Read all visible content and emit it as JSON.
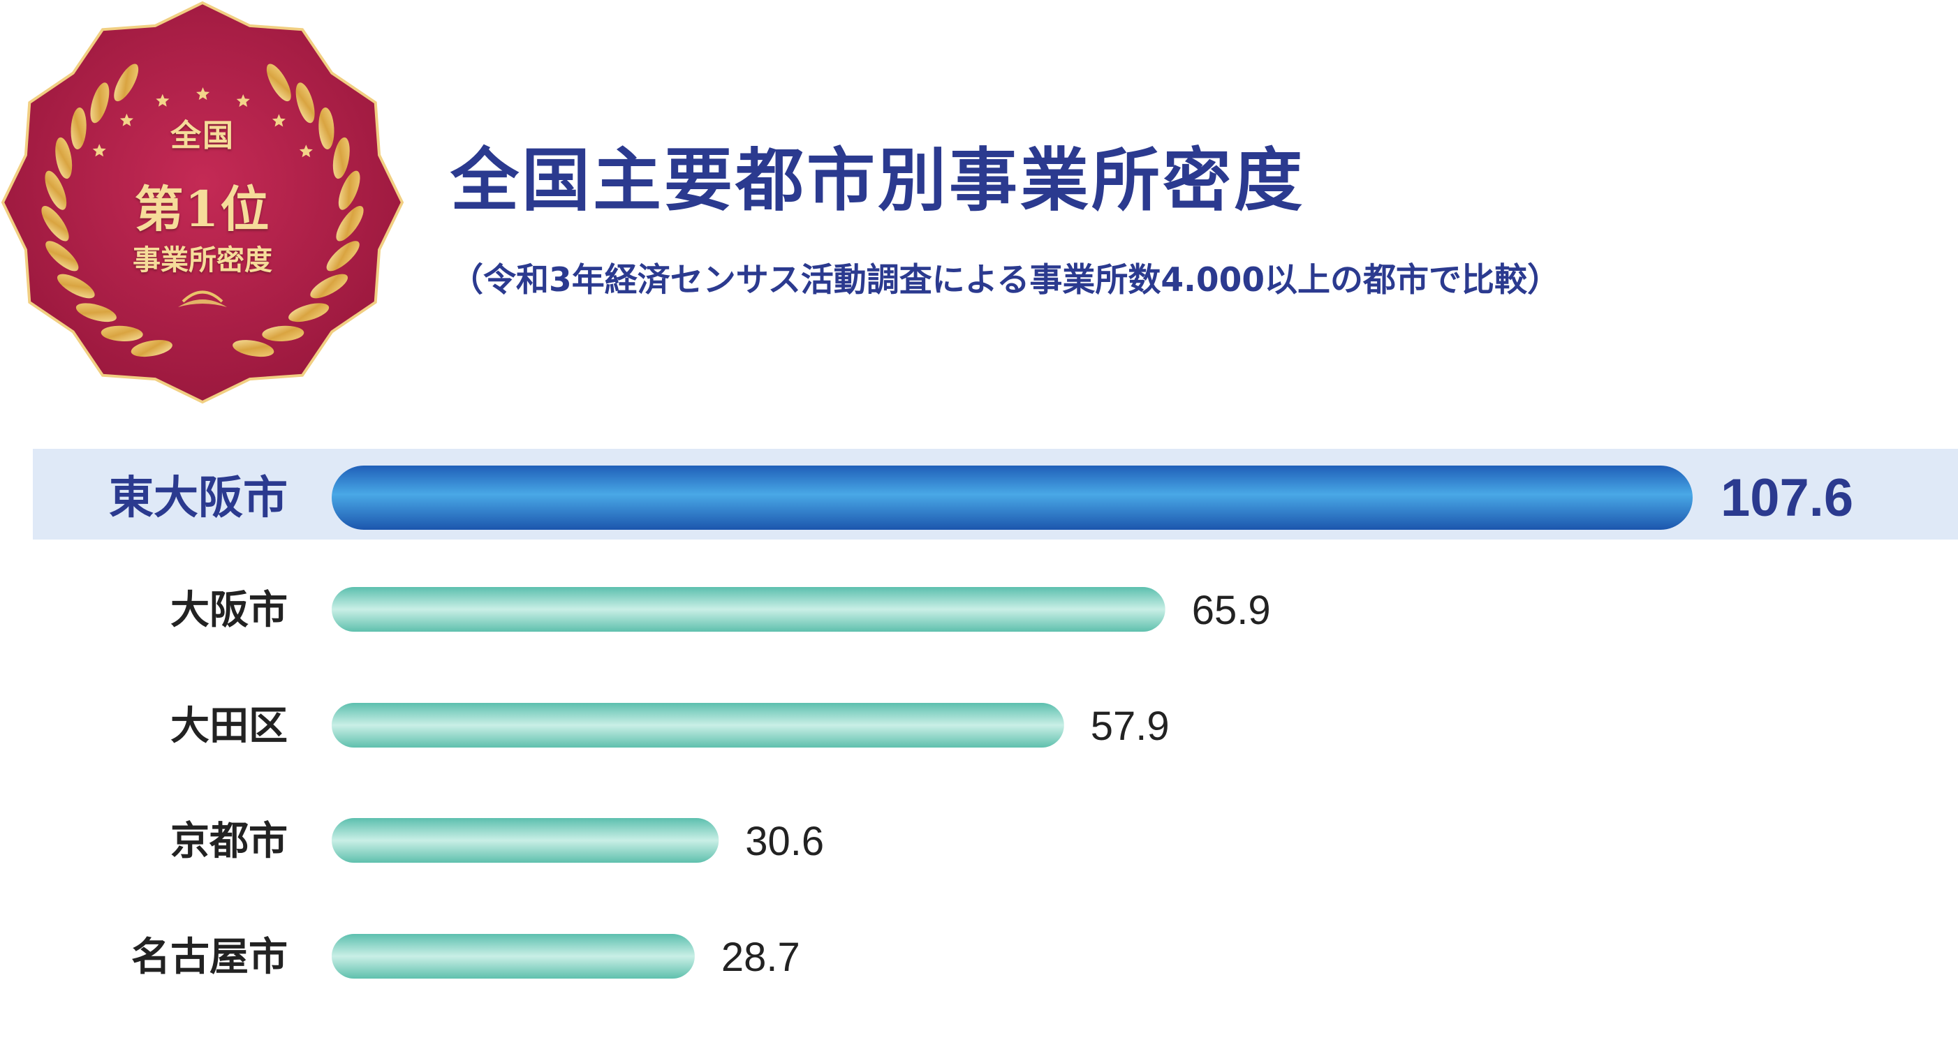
{
  "badge": {
    "line1": "全国",
    "line2": "第1位",
    "line3": "事業所密度",
    "colors": {
      "background": "#b2214a",
      "gold": "#e9c36a"
    }
  },
  "title": "全国主要都市別事業所密度",
  "subtitle": "（令和3年経済センサス活動調査による事業所数4.000以上の都市で比較）",
  "colors": {
    "title": "#2b3a8f",
    "highlight_bar": "#2f7fd0",
    "highlight_band": "#dfe9f7",
    "teal_bar": "#84d3c5",
    "label": "#222222"
  },
  "chart_data": {
    "type": "bar",
    "orientation": "horizontal",
    "categories": [
      "東大阪市",
      "大阪市",
      "大田区",
      "京都市",
      "名古屋市"
    ],
    "values": [
      107.6,
      65.9,
      57.9,
      30.6,
      28.7
    ],
    "value_labels": [
      "107.6",
      "65.9",
      "57.9",
      "30.6",
      "28.7"
    ],
    "highlighted": "東大阪市",
    "grid": false,
    "legend": false
  }
}
